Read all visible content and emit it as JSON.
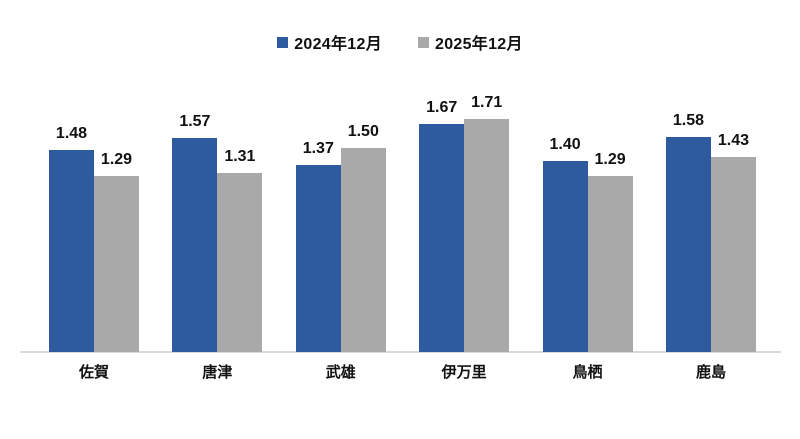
{
  "chart_data": {
    "type": "bar",
    "categories": [
      "佐賀",
      "唐津",
      "武雄",
      "伊万里",
      "鳥栖",
      "鹿島"
    ],
    "series": [
      {
        "name": "2024年12月",
        "color": "#2E5B9F",
        "values": [
          1.48,
          1.57,
          1.37,
          1.67,
          1.4,
          1.58
        ]
      },
      {
        "name": "2025年12月",
        "color": "#A9A9A9",
        "values": [
          1.29,
          1.31,
          1.5,
          1.71,
          1.29,
          1.43
        ]
      }
    ],
    "title": "",
    "xlabel": "",
    "ylabel": "",
    "ylim": [
      0,
      1.8
    ],
    "grid": false,
    "value_labels": true,
    "value_label_format": "0.00",
    "legend_position": "top-center",
    "axis_color": "#D9D9D9",
    "label_color": "#111111"
  }
}
